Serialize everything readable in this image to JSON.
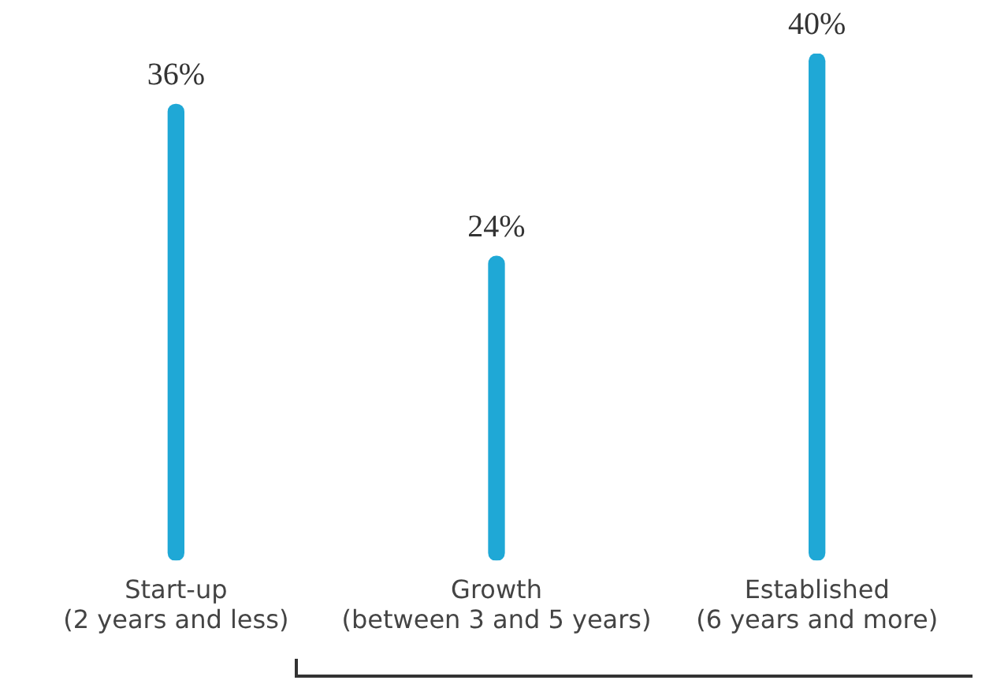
{
  "chart_data": {
    "type": "bar",
    "categories": [
      "Start-up\n(2 years and less)",
      "Growth\n(between 3 and 5 years)",
      "Established\n(6 years and more)"
    ],
    "values": [
      36,
      24,
      40
    ],
    "color": "#1fa8d6",
    "value_labels": [
      "36%",
      "24%",
      "40%"
    ],
    "grid": false,
    "legend": false,
    "tick_labels": "x"
  }
}
